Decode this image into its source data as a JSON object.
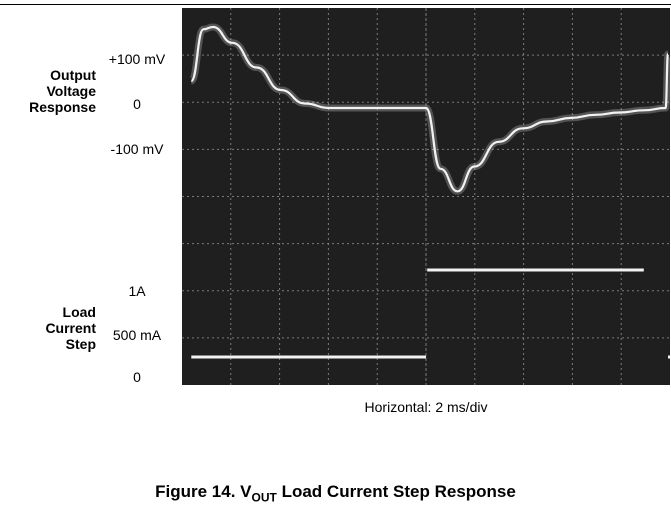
{
  "labels": {
    "output_group": [
      "Output",
      "Voltage",
      "Response"
    ],
    "load_group": [
      "Load",
      "Current",
      "Step"
    ],
    "voltage_ticks": [
      "+100 mV",
      "0",
      "-100 mV"
    ],
    "current_ticks": [
      "1A",
      "500 mA",
      "0"
    ]
  },
  "horizontal_label": "Horizontal: 2 ms/div",
  "caption": {
    "prefix": "Figure 14. V",
    "sub": "OUT",
    "suffix": " Load Current Step Response"
  },
  "colors": {
    "screen": "#1f1f1f",
    "grid": "#9a9a9a",
    "trace": "#f2f2f2"
  },
  "chart_data": {
    "type": "line",
    "title": "Figure 14. VOUT Load Current Step Response",
    "xlabel": "Horizontal: 2 ms/div",
    "x_unit": "ms",
    "xlim": [
      0,
      20
    ],
    "divisions": {
      "x": 10,
      "y": 8
    },
    "grid": true,
    "series": [
      {
        "unit": "mV",
        "x": [
          0.3,
          0.8,
          1.2,
          2.0,
          3.0,
          4.0,
          5.0,
          6.0,
          7.0,
          8.0,
          9.0,
          10.0,
          10.6,
          11.3,
          12.0,
          13.0,
          14.0,
          15.0,
          16.0,
          17.0,
          18.0,
          19.0,
          19.9,
          20.0
        ],
        "values": [
          60,
          175,
          180,
          145,
          90,
          40,
          10,
          0,
          0,
          0,
          0,
          0,
          -135,
          -185,
          -130,
          -75,
          -45,
          -30,
          -22,
          -15,
          -10,
          -5,
          0,
          120
        ]
      },
      {
        "unit": "mA",
        "x": [
          0.3,
          1,
          2,
          3,
          4,
          5,
          6,
          7,
          8,
          9,
          10.0,
          10.05,
          11,
          12,
          13,
          14,
          15,
          16,
          17,
          18,
          19,
          20.0
        ],
        "values": [
          0,
          0,
          0,
          0,
          0,
          0,
          0,
          0,
          0,
          0,
          0,
          1000,
          1000,
          1000,
          1000,
          1000,
          1000,
          1000,
          1000,
          1000,
          1000,
          0
        ]
      }
    ]
  }
}
